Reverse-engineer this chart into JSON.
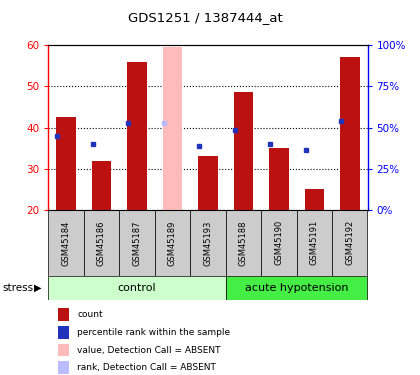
{
  "title": "GDS1251 / 1387444_at",
  "samples": [
    "GSM45184",
    "GSM45186",
    "GSM45187",
    "GSM45189",
    "GSM45193",
    "GSM45188",
    "GSM45190",
    "GSM45191",
    "GSM45192"
  ],
  "red_values": [
    42.5,
    32.0,
    56.0,
    null,
    33.0,
    48.5,
    35.0,
    25.0,
    57.0
  ],
  "blue_values": [
    38.0,
    36.0,
    41.0,
    null,
    35.5,
    39.5,
    36.0,
    34.5,
    41.5
  ],
  "absent_red": [
    null,
    null,
    null,
    59.5,
    null,
    null,
    null,
    null,
    null
  ],
  "absent_blue": [
    null,
    null,
    null,
    41.0,
    null,
    null,
    null,
    null,
    null
  ],
  "control_count": 5,
  "acute_count": 4,
  "ylim_left": [
    20,
    60
  ],
  "ylim_right": [
    0,
    100
  ],
  "yticks_left": [
    20,
    30,
    40,
    50,
    60
  ],
  "yticks_right": [
    0,
    25,
    50,
    75,
    100
  ],
  "ytick_labels_right": [
    "0%",
    "25%",
    "50%",
    "75%",
    "100%"
  ],
  "bar_color_red": "#bb1111",
  "bar_color_blue": "#2233bb",
  "bar_color_absent_red": "#ffbbbb",
  "bar_color_absent_blue": "#bbbbff",
  "control_bg": "#ccffcc",
  "acute_bg": "#44ee44",
  "sample_bg": "#cccccc",
  "legend_items": [
    "count",
    "percentile rank within the sample",
    "value, Detection Call = ABSENT",
    "rank, Detection Call = ABSENT"
  ],
  "legend_colors": [
    "#bb1111",
    "#2233bb",
    "#ffbbbb",
    "#bbbbff"
  ],
  "stress_label": "stress",
  "control_label": "control",
  "acute_label": "acute hypotension",
  "base_value": 20,
  "bar_width": 0.55
}
